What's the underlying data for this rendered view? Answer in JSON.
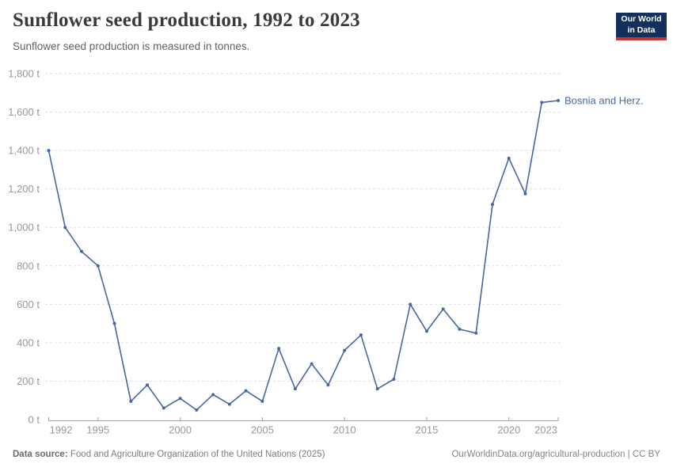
{
  "header": {
    "title": "Sunflower seed production, 1992 to 2023",
    "subtitle": "Sunflower seed production is measured in tonnes."
  },
  "logo": {
    "line1": "Our World",
    "line2": "in Data"
  },
  "footer": {
    "data_source_label": "Data source:",
    "data_source_value": "Food and Agriculture Organization of the United Nations (2025)",
    "attribution": "OurWorldinData.org/agricultural-production | CC BY"
  },
  "colors": {
    "line": "#4666a4",
    "grid": "#dedede",
    "axis": "#a3a3a3",
    "tick_text": "#95989b",
    "logo_bg": "#12305b",
    "logo_accent": "#c5342f"
  },
  "chart_data": {
    "type": "line",
    "title": "Sunflower seed production, 1992 to 2023",
    "subtitle": "Sunflower seed production is measured in tonnes.",
    "unit": "t",
    "x": [
      1992,
      1993,
      1994,
      1995,
      1996,
      1997,
      1998,
      1999,
      2000,
      2001,
      2002,
      2003,
      2004,
      2005,
      2006,
      2007,
      2008,
      2009,
      2010,
      2011,
      2012,
      2013,
      2014,
      2015,
      2016,
      2017,
      2018,
      2019,
      2020,
      2021,
      2022,
      2023
    ],
    "series": [
      {
        "name": "Bosnia and Herz.",
        "values": [
          1400,
          1000,
          875,
          800,
          500,
          95,
          180,
          60,
          110,
          50,
          130,
          80,
          150,
          95,
          370,
          160,
          290,
          180,
          360,
          440,
          160,
          210,
          600,
          460,
          575,
          470,
          450,
          1120,
          1360,
          1175,
          1650,
          1660
        ]
      }
    ],
    "x_range": [
      1992,
      2023
    ],
    "ylim": [
      0,
      1800
    ],
    "grid": true,
    "legend_position": "inline-end-label",
    "end_label": "Bosnia and Herz.",
    "yticks": [
      {
        "value": 0,
        "label": "0 t"
      },
      {
        "value": 200,
        "label": "200 t"
      },
      {
        "value": 400,
        "label": "400 t"
      },
      {
        "value": 600,
        "label": "600 t"
      },
      {
        "value": 800,
        "label": "800 t"
      },
      {
        "value": 1000,
        "label": "1,000 t"
      },
      {
        "value": 1200,
        "label": "1,200 t"
      },
      {
        "value": 1400,
        "label": "1,400 t"
      },
      {
        "value": 1600,
        "label": "1,600 t"
      },
      {
        "value": 1800,
        "label": "1,800 t"
      }
    ],
    "xticks": [
      {
        "value": 1992,
        "label": "1992"
      },
      {
        "value": 1995,
        "label": "1995"
      },
      {
        "value": 2000,
        "label": "2000"
      },
      {
        "value": 2005,
        "label": "2005"
      },
      {
        "value": 2010,
        "label": "2010"
      },
      {
        "value": 2015,
        "label": "2015"
      },
      {
        "value": 2020,
        "label": "2020"
      },
      {
        "value": 2023,
        "label": "2023"
      }
    ]
  }
}
